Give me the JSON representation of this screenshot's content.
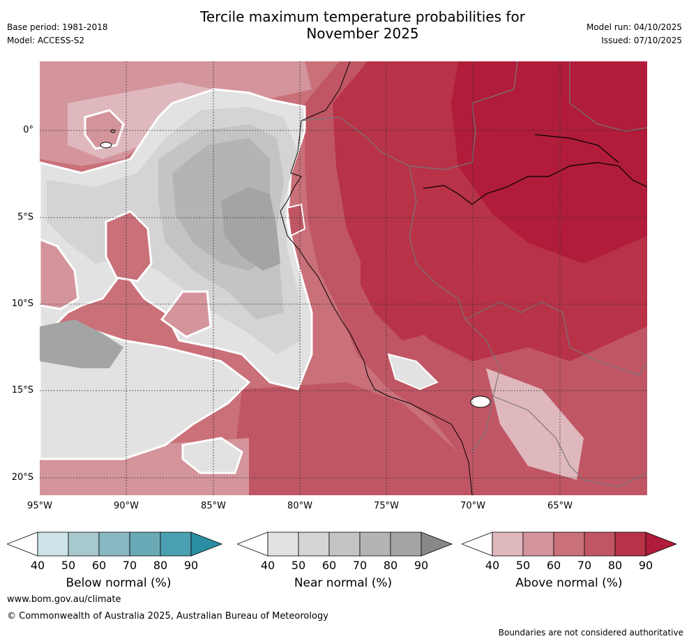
{
  "header": {
    "base_period": "Base period: 1981-2018",
    "model": "Model: ACCESS-S2",
    "title_line1": "Tercile maximum temperature probabilities for",
    "title_line2": "November 2025",
    "model_run": "Model run: 04/10/2025",
    "issued": "Issued: 07/10/2025"
  },
  "map": {
    "lat_labels": [
      "0°",
      "5°S",
      "10°S",
      "15°S",
      "20°S"
    ],
    "lon_labels": [
      "95°W",
      "90°W",
      "85°W",
      "80°W",
      "75°W",
      "70°W",
      "65°W"
    ],
    "colors": {
      "above_40": "#dfb8bd",
      "above_50": "#d4949c",
      "above_60": "#c97079",
      "above_70": "#c05664",
      "above_80": "#b83248",
      "above_90": "#b01c3a",
      "near_40": "#e2e2e2",
      "near_50": "#d4d4d4",
      "near_60": "#c4c4c4",
      "near_70": "#b4b4b4",
      "near_80": "#a4a4a4",
      "near_90": "#888888",
      "below_40": "#cce3e8",
      "below_50": "#a7c8cd",
      "below_60": "#8ab8c2",
      "below_70": "#6aaab6",
      "below_80": "#4aa0b1",
      "below_90": "#2c8ea4"
    }
  },
  "legends": [
    {
      "label": "Below normal (%)",
      "ticks": [
        "40",
        "50",
        "60",
        "70",
        "80",
        "90"
      ],
      "colors": [
        "#ffffff",
        "#cce3e8",
        "#a7c8cd",
        "#8ab8c2",
        "#6aaab6",
        "#4aa0b1",
        "#2c8ea4"
      ]
    },
    {
      "label": "Near normal (%)",
      "ticks": [
        "40",
        "50",
        "60",
        "70",
        "80",
        "90"
      ],
      "colors": [
        "#ffffff",
        "#e2e2e2",
        "#d4d4d4",
        "#c4c4c4",
        "#b4b4b4",
        "#a4a4a4",
        "#888888"
      ]
    },
    {
      "label": "Above normal (%)",
      "ticks": [
        "40",
        "50",
        "60",
        "70",
        "80",
        "90"
      ],
      "colors": [
        "#ffffff",
        "#dfb8bd",
        "#d4949c",
        "#c97079",
        "#c05664",
        "#b83248",
        "#b01c3a"
      ]
    }
  ],
  "footer": {
    "website": "www.bom.gov.au/climate",
    "copyright": "© Commonwealth of Australia 2025, Australian Bureau of Meteorology",
    "disclaimer": "Boundaries are not considered authoritative"
  }
}
